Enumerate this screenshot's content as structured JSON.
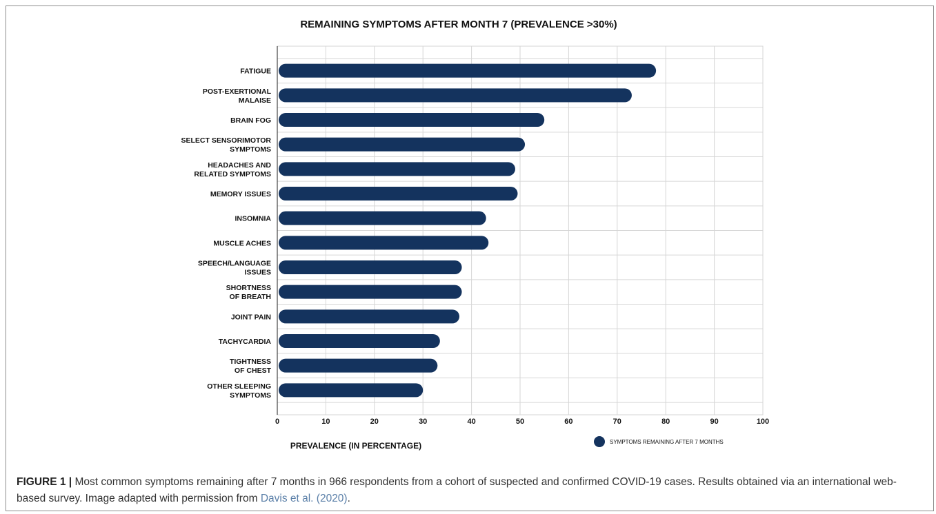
{
  "chart_data": {
    "type": "bar",
    "orientation": "horizontal",
    "title": "REMAINING SYMPTOMS AFTER MONTH 7 (PREVALENCE >30%)",
    "xlabel": "PREVALENCE (IN PERCENTAGE)",
    "xlim": [
      0,
      100
    ],
    "xticks": [
      0,
      10,
      20,
      30,
      40,
      50,
      60,
      70,
      80,
      90,
      100
    ],
    "grid": true,
    "legend_position": "bottom-right",
    "categories": [
      [
        "FATIGUE"
      ],
      [
        "POST-EXERTIONAL",
        "MALAISE"
      ],
      [
        "BRAIN FOG"
      ],
      [
        "SELECT SENSORIMOTOR",
        "SYMPTOMS"
      ],
      [
        "HEADACHES AND",
        "RELATED SYMPTOMS"
      ],
      [
        "MEMORY ISSUES"
      ],
      [
        "INSOMNIA"
      ],
      [
        "MUSCLE ACHES"
      ],
      [
        "SPEECH/LANGUAGE",
        "ISSUES"
      ],
      [
        "SHORTNESS",
        "OF BREATH"
      ],
      [
        "JOINT PAIN"
      ],
      [
        "TACHYCARDIA"
      ],
      [
        "TIGHTNESS",
        "OF CHEST"
      ],
      [
        "OTHER SLEEPING",
        "SYMPTOMS"
      ]
    ],
    "series": [
      {
        "name": "SYMPTOMS REMAINING AFTER 7 MONTHS",
        "color": "#14335e",
        "values": [
          78,
          73,
          55,
          51,
          49,
          49.5,
          43,
          43.5,
          38,
          38,
          37.5,
          33.5,
          33,
          30
        ]
      }
    ]
  },
  "caption": {
    "label": "FIGURE 1 |",
    "text": " Most common symptoms remaining after 7 months in 966 respondents from a cohort of suspected and confirmed COVID-19 cases. Results obtained via an international web-based survey. Image adapted with permission from ",
    "reference": "Davis et al. (2020)",
    "end": "."
  }
}
